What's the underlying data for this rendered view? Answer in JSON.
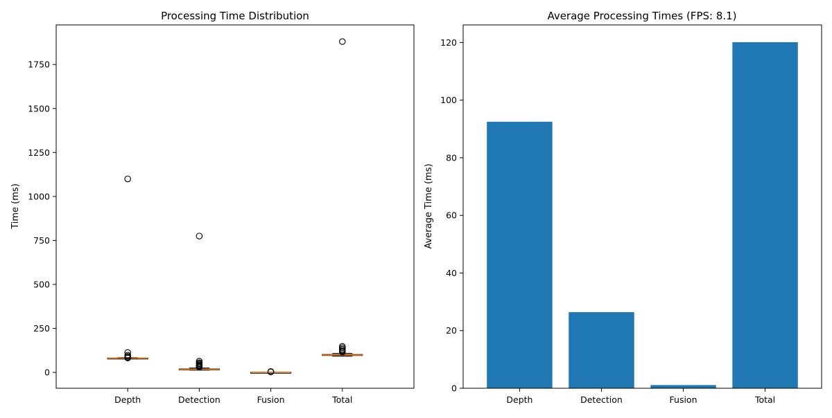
{
  "chart_data": [
    {
      "type": "box",
      "title": "Processing Time Distribution",
      "xlabel": "",
      "ylabel": "Time (ms)",
      "categories": [
        "Depth",
        "Detection",
        "Fusion",
        "Total"
      ],
      "ylim": [
        -90,
        1975
      ],
      "yticks": [
        0,
        250,
        500,
        750,
        1000,
        1250,
        1500,
        1750
      ],
      "boxes": [
        {
          "category": "Depth",
          "whislo": 79,
          "q1": 80,
          "median": 81,
          "q3": 82,
          "whishi": 84,
          "fliers": [
            1100,
            113,
            98,
            92,
            86,
            84,
            82
          ]
        },
        {
          "category": "Detection",
          "whislo": 13,
          "q1": 15,
          "median": 17,
          "q3": 20,
          "whishi": 25,
          "fliers": [
            775,
            64,
            55,
            50,
            44,
            40,
            36,
            33,
            30
          ]
        },
        {
          "category": "Fusion",
          "whislo": 0.5,
          "q1": 0.8,
          "median": 1,
          "q3": 1.2,
          "whishi": 1.5,
          "fliers": [
            3,
            4,
            5
          ]
        },
        {
          "category": "Total",
          "whislo": 92,
          "q1": 96,
          "median": 99,
          "q3": 102,
          "whishi": 108,
          "fliers": [
            1880,
            148,
            140,
            132,
            126,
            120,
            116
          ]
        }
      ],
      "colors": {
        "box": "#000000",
        "median": "#ff7f0e",
        "flier": "#000000"
      }
    },
    {
      "type": "bar",
      "title": "Average Processing Times (FPS: 8.1)",
      "xlabel": "",
      "ylabel": "Average Time (ms)",
      "categories": [
        "Depth",
        "Detection",
        "Fusion",
        "Total"
      ],
      "values": [
        92.5,
        26.4,
        1.1,
        120.1
      ],
      "ylim": [
        0,
        126.1
      ],
      "yticks": [
        0,
        20,
        40,
        60,
        80,
        100,
        120
      ],
      "colors": {
        "bar": "#1f77b4"
      }
    }
  ]
}
